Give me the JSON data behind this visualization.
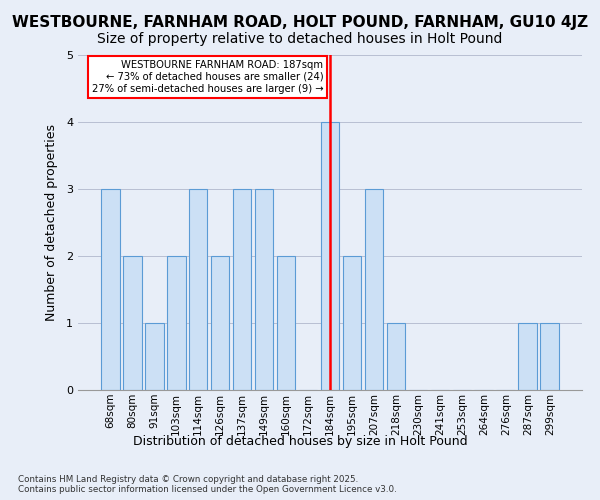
{
  "title_line1": "WESTBOURNE, FARNHAM ROAD, HOLT POUND, FARNHAM, GU10 4JZ",
  "title_line2": "Size of property relative to detached houses in Holt Pound",
  "xlabel": "Distribution of detached houses by size in Holt Pound",
  "ylabel": "Number of detached properties",
  "footer": "Contains HM Land Registry data © Crown copyright and database right 2025.\nContains public sector information licensed under the Open Government Licence v3.0.",
  "categories": [
    "68sqm",
    "80sqm",
    "91sqm",
    "103sqm",
    "114sqm",
    "126sqm",
    "137sqm",
    "149sqm",
    "160sqm",
    "172sqm",
    "184sqm",
    "195sqm",
    "207sqm",
    "218sqm",
    "230sqm",
    "241sqm",
    "253sqm",
    "264sqm",
    "276sqm",
    "287sqm",
    "299sqm"
  ],
  "values": [
    3,
    2,
    1,
    2,
    3,
    2,
    3,
    3,
    2,
    0,
    4,
    2,
    3,
    1,
    0,
    0,
    0,
    0,
    0,
    1,
    1
  ],
  "bar_color": "#cce0f5",
  "bar_edge_color": "#5b9bd5",
  "red_line_index": 10,
  "annotation_title": "WESTBOURNE FARNHAM ROAD: 187sqm",
  "annotation_line2": "← 73% of detached houses are smaller (24)",
  "annotation_line3": "27% of semi-detached houses are larger (9) →",
  "ylim": [
    0,
    5
  ],
  "yticks": [
    0,
    1,
    2,
    3,
    4,
    5
  ],
  "title_fontsize": 11,
  "subtitle_fontsize": 10,
  "axis_label_fontsize": 9,
  "tick_fontsize": 7.5,
  "bg_color": "#e8eef8",
  "plot_bg_color": "#e8eef8",
  "grid_color": "#b0b8cc"
}
